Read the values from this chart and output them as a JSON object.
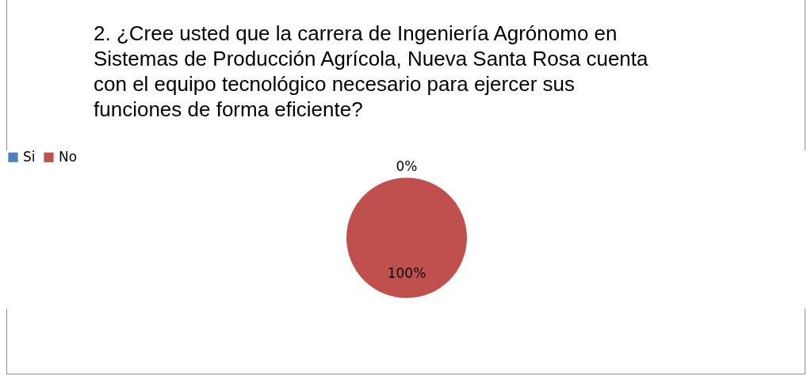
{
  "chart_data": {
    "type": "pie",
    "title": "2.    ¿Cree usted que  la carrera de  Ingeniería Agrónomo en Sistemas de Producción Agrícola, Nueva Santa Rosa cuenta con el equipo tecnológico necesario para ejercer sus funciones de forma eficiente?",
    "categories": [
      "Si",
      "No"
    ],
    "values": [
      0,
      100
    ],
    "colors": [
      "#4f81bd",
      "#c0504d"
    ],
    "value_labels": [
      "0%",
      "100%"
    ],
    "legend": "top"
  }
}
